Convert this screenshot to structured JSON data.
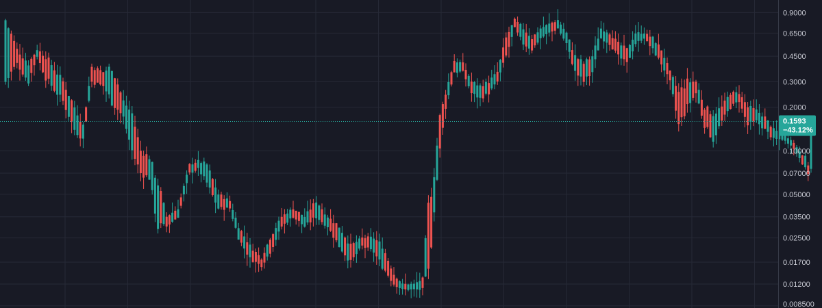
{
  "colors": {
    "background": "#181a25",
    "grid": "#262936",
    "axis_line": "#363a47",
    "tick_text": "#c9cbd4",
    "up": "#26a69a",
    "down": "#ef5350",
    "price_line": "#26a69a",
    "badge_bg": "#26a69a"
  },
  "chart_data": {
    "type": "candlestick",
    "scale": "log",
    "ylim": [
      0.0082,
      1.1
    ],
    "y_ticks": [
      {
        "value": 0.9,
        "label": "0.9000"
      },
      {
        "value": 0.65,
        "label": "0.6500"
      },
      {
        "value": 0.45,
        "label": "0.4500"
      },
      {
        "value": 0.3,
        "label": "0.3000"
      },
      {
        "value": 0.2,
        "label": "0.2000"
      },
      {
        "value": 0.1,
        "label": "0.10000"
      },
      {
        "value": 0.07,
        "label": "0.07000"
      },
      {
        "value": 0.05,
        "label": "0.05000"
      },
      {
        "value": 0.035,
        "label": "0.03500"
      },
      {
        "value": 0.025,
        "label": "0.02500"
      },
      {
        "value": 0.017,
        "label": "0.01700"
      },
      {
        "value": 0.012,
        "label": "0.01200"
      },
      {
        "value": 0.0085,
        "label": "0.008500"
      }
    ],
    "grid": true,
    "last_price": {
      "value": 0.1593,
      "price_label": "0.1593",
      "change_label": "−43.12%"
    },
    "anchors": [
      [
        0,
        0.3,
        0.8
      ],
      [
        4,
        0.4,
        0.5
      ],
      [
        8,
        0.3,
        0.4
      ],
      [
        11,
        0.45,
        0.5
      ],
      [
        14,
        0.32,
        0.45
      ],
      [
        20,
        0.22,
        0.3
      ],
      [
        24,
        0.14,
        0.2
      ],
      [
        27,
        0.12,
        0.15
      ],
      [
        30,
        0.3,
        0.38
      ],
      [
        34,
        0.28,
        0.35
      ],
      [
        37,
        0.22,
        0.38
      ],
      [
        41,
        0.17,
        0.22
      ],
      [
        44,
        0.1,
        0.18
      ],
      [
        47,
        0.07,
        0.1
      ],
      [
        50,
        0.065,
        0.09
      ],
      [
        53,
        0.03,
        0.06
      ],
      [
        56,
        0.03,
        0.035
      ],
      [
        60,
        0.035,
        0.04
      ],
      [
        64,
        0.07,
        0.08
      ],
      [
        67,
        0.075,
        0.085
      ],
      [
        70,
        0.06,
        0.08
      ],
      [
        74,
        0.04,
        0.05
      ],
      [
        78,
        0.04,
        0.045
      ],
      [
        81,
        0.025,
        0.03
      ],
      [
        85,
        0.018,
        0.022
      ],
      [
        89,
        0.016,
        0.018
      ],
      [
        92,
        0.02,
        0.025
      ],
      [
        96,
        0.03,
        0.035
      ],
      [
        100,
        0.035,
        0.04
      ],
      [
        104,
        0.03,
        0.035
      ],
      [
        108,
        0.035,
        0.045
      ],
      [
        112,
        0.03,
        0.035
      ],
      [
        116,
        0.022,
        0.03
      ],
      [
        120,
        0.017,
        0.022
      ],
      [
        124,
        0.022,
        0.025
      ],
      [
        128,
        0.02,
        0.025
      ],
      [
        131,
        0.016,
        0.022
      ],
      [
        135,
        0.012,
        0.014
      ],
      [
        138,
        0.011,
        0.012
      ],
      [
        142,
        0.011,
        0.012
      ],
      [
        145,
        0.011,
        0.013
      ],
      [
        147,
        0.014,
        0.04
      ],
      [
        149,
        0.04,
        0.07
      ],
      [
        151,
        0.1,
        0.17
      ],
      [
        153,
        0.2,
        0.25
      ],
      [
        156,
        0.35,
        0.42
      ],
      [
        159,
        0.35,
        0.4
      ],
      [
        162,
        0.25,
        0.3
      ],
      [
        165,
        0.23,
        0.28
      ],
      [
        168,
        0.25,
        0.3
      ],
      [
        171,
        0.3,
        0.35
      ],
      [
        174,
        0.45,
        0.6
      ],
      [
        177,
        0.7,
        0.8
      ],
      [
        180,
        0.55,
        0.7
      ],
      [
        183,
        0.5,
        0.6
      ],
      [
        186,
        0.6,
        0.7
      ],
      [
        189,
        0.65,
        0.75
      ],
      [
        192,
        0.7,
        0.8
      ],
      [
        195,
        0.55,
        0.65
      ],
      [
        198,
        0.35,
        0.45
      ],
      [
        201,
        0.3,
        0.4
      ],
      [
        204,
        0.35,
        0.45
      ],
      [
        207,
        0.6,
        0.7
      ],
      [
        210,
        0.55,
        0.65
      ],
      [
        213,
        0.45,
        0.55
      ],
      [
        216,
        0.4,
        0.5
      ],
      [
        219,
        0.55,
        0.65
      ],
      [
        222,
        0.6,
        0.65
      ],
      [
        225,
        0.5,
        0.6
      ],
      [
        228,
        0.4,
        0.5
      ],
      [
        231,
        0.3,
        0.35
      ],
      [
        234,
        0.15,
        0.25
      ],
      [
        237,
        0.2,
        0.3
      ],
      [
        240,
        0.25,
        0.3
      ],
      [
        243,
        0.15,
        0.2
      ],
      [
        246,
        0.12,
        0.18
      ],
      [
        249,
        0.16,
        0.2
      ],
      [
        252,
        0.2,
        0.25
      ],
      [
        255,
        0.22,
        0.25
      ],
      [
        258,
        0.15,
        0.2
      ],
      [
        261,
        0.16,
        0.19
      ],
      [
        264,
        0.14,
        0.17
      ],
      [
        267,
        0.12,
        0.14
      ],
      [
        270,
        0.12,
        0.13
      ],
      [
        273,
        0.11,
        0.12
      ],
      [
        276,
        0.09,
        0.1
      ],
      [
        278,
        0.075,
        0.09
      ],
      [
        279,
        0.07,
        0.08
      ],
      [
        280,
        0.075,
        0.16
      ]
    ]
  }
}
